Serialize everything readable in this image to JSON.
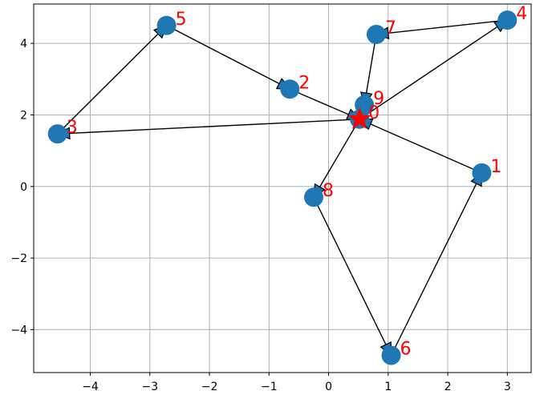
{
  "chart_data": {
    "type": "scatter",
    "title": "",
    "xlabel": "",
    "ylabel": "",
    "xlim": [
      -4.95,
      3.4
    ],
    "ylim": [
      -5.2,
      5.1
    ],
    "xticks": [
      -4,
      -3,
      -2,
      -1,
      0,
      1,
      2,
      3
    ],
    "yticks": [
      -4,
      -2,
      0,
      2,
      4
    ],
    "xtick_labels": [
      "−4",
      "−3",
      "−2",
      "−1",
      "0",
      "1",
      "2",
      "3"
    ],
    "ytick_labels": [
      "−4",
      "−2",
      "0",
      "2",
      "4"
    ],
    "grid": true,
    "points": [
      {
        "label": "0",
        "x": 0.52,
        "y": 1.88
      },
      {
        "label": "1",
        "x": 2.57,
        "y": 0.38
      },
      {
        "label": "2",
        "x": -0.65,
        "y": 2.72
      },
      {
        "label": "3",
        "x": -4.55,
        "y": 1.47
      },
      {
        "label": "4",
        "x": 3.0,
        "y": 4.65
      },
      {
        "label": "5",
        "x": -2.72,
        "y": 4.5
      },
      {
        "label": "6",
        "x": 1.05,
        "y": -4.72
      },
      {
        "label": "7",
        "x": 0.8,
        "y": 4.25
      },
      {
        "label": "8",
        "x": -0.25,
        "y": -0.3
      },
      {
        "label": "9",
        "x": 0.6,
        "y": 2.28
      }
    ],
    "path_order": [
      0,
      4,
      7,
      9,
      0,
      8,
      6,
      1,
      0,
      3,
      5,
      2,
      0
    ],
    "start_marker": {
      "x": 0.52,
      "y": 1.88,
      "shape": "star"
    },
    "colors": {
      "points": "#1f77b4",
      "labels": "#ff0000",
      "star": "#ff0000",
      "arrows": "#000000",
      "grid": "#b0b0b0"
    }
  }
}
